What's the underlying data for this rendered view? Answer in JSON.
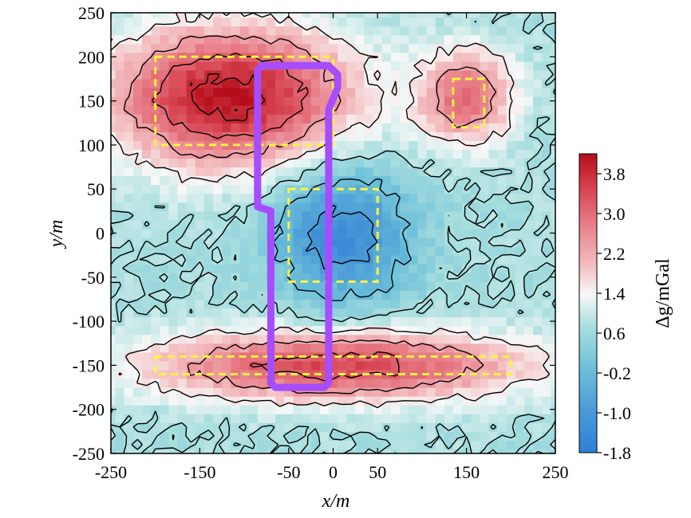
{
  "chart_data": {
    "type": "heatmap",
    "subtype": "gravity anomaly contour map",
    "xlabel": "x/m",
    "ylabel": "y/m",
    "xlim": [
      -250,
      250
    ],
    "ylim": [
      -250,
      250
    ],
    "x_ticks": [
      -250,
      -150,
      -50,
      0,
      50,
      150,
      250
    ],
    "y_ticks": [
      250,
      200,
      150,
      100,
      50,
      0,
      -50,
      -100,
      -150,
      -200,
      -250
    ],
    "colorbar": {
      "label": "Δg/mGal",
      "min": -1.8,
      "max": 4.2,
      "tick_values": [
        3.8,
        3.0,
        2.2,
        1.4,
        0.6,
        -0.2,
        -1.0,
        -1.8
      ],
      "tick_labels": [
        "3.8",
        "3.0",
        "2.2",
        "1.4",
        "0.6",
        "-0.2",
        "-1.0",
        "-1.8"
      ]
    },
    "contour_levels": [
      -1.0,
      -0.2,
      0.6,
      1.4,
      2.2,
      3.0,
      3.8
    ],
    "anomalies": [
      {
        "name": "upper-left positive",
        "x": -115,
        "y": 155,
        "sx": 95,
        "sy": 55,
        "amp": 3.5
      },
      {
        "name": "upper-right positive",
        "x": 150,
        "y": 155,
        "sx": 38,
        "sy": 38,
        "amp": 2.2
      },
      {
        "name": "center negative",
        "x": 10,
        "y": 0,
        "sx": 55,
        "sy": 55,
        "amp": -2.0
      },
      {
        "name": "lower elongated positive",
        "x": 5,
        "y": -150,
        "sx": 150,
        "sy": 28,
        "amp": 2.8
      }
    ],
    "background_value": 0.6,
    "source_boxes": [
      {
        "x0": -200,
        "x1": 0,
        "y0": 100,
        "y1": 200
      },
      {
        "x0": 135,
        "x1": 170,
        "y0": 120,
        "y1": 175
      },
      {
        "x0": -50,
        "x1": 50,
        "y0": -55,
        "y1": 50
      },
      {
        "x0": -200,
        "x1": 200,
        "y0": -160,
        "y1": -140
      }
    ],
    "outline_path": [
      [
        -85,
        185
      ],
      [
        -80,
        190
      ],
      [
        -5,
        190
      ],
      [
        5,
        180
      ],
      [
        5,
        165
      ],
      [
        -5,
        140
      ],
      [
        -5,
        -170
      ],
      [
        -10,
        -175
      ],
      [
        -65,
        -175
      ],
      [
        -70,
        -170
      ],
      [
        -70,
        25
      ],
      [
        -85,
        30
      ],
      [
        -85,
        185
      ]
    ],
    "colors": {
      "source_box": "#fff33b",
      "outline": "#a64dff",
      "contour": "#000000"
    }
  }
}
